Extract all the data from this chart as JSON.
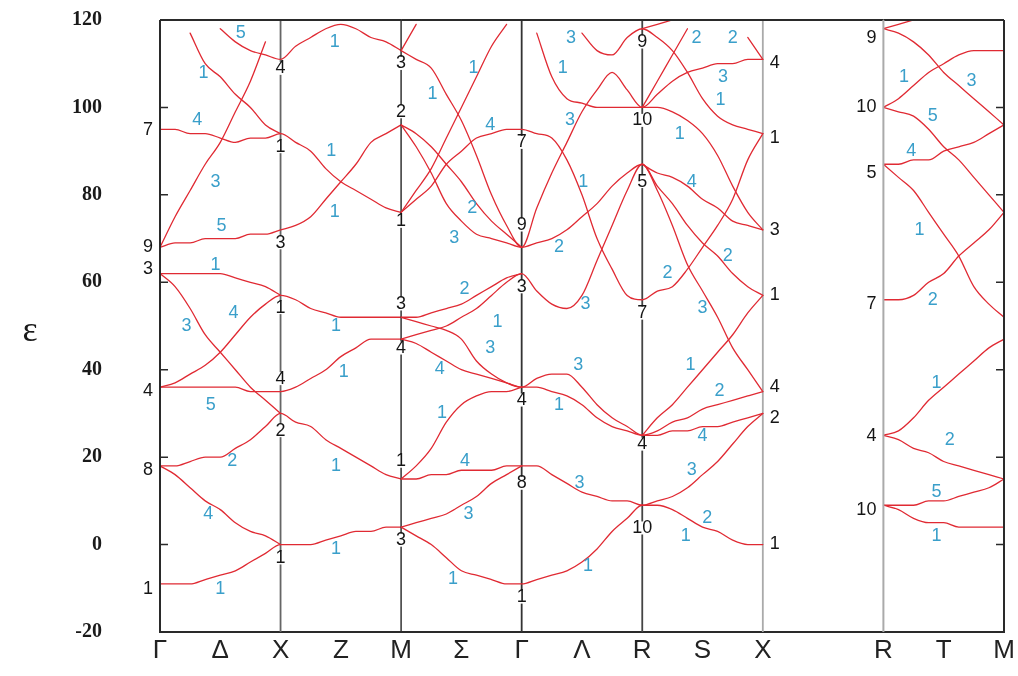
{
  "chart_data": [
    {
      "type": "line",
      "ylabel": "ε",
      "ylim": [
        -20,
        120
      ],
      "yticks": [
        -20,
        0,
        20,
        40,
        60,
        80,
        100,
        120
      ],
      "marker": "none",
      "categories": [
        "Γ",
        null,
        null,
        null,
        "Δ",
        null,
        null,
        null,
        "X",
        null,
        null,
        null,
        "Z",
        null,
        null,
        null,
        "M"
      ],
      "ref_lines": [
        {
          "axis": "x",
          "value": "X",
          "color": "#666666"
        }
      ],
      "series": [
        {
          "color": "#e02a33",
          "values": [
            -9,
            -9,
            -9,
            -8,
            -7,
            -6,
            -4,
            -2,
            0,
            0,
            0,
            1,
            2,
            3,
            3,
            4,
            4
          ]
        },
        {
          "color": "#e02a33",
          "values": [
            18,
            18,
            19,
            20,
            20,
            22,
            24,
            27,
            30,
            28,
            27,
            24,
            22,
            20,
            18,
            16,
            15
          ]
        },
        {
          "color": "#e02a33",
          "values": [
            36,
            36,
            36,
            36,
            36,
            36,
            35,
            35,
            35,
            36,
            38,
            40,
            43,
            45,
            47,
            47,
            47
          ]
        },
        {
          "color": "#e02a33",
          "values": [
            36,
            37,
            39,
            41,
            44,
            48,
            52,
            55,
            57,
            56,
            54,
            53,
            52,
            52,
            52,
            52,
            52
          ]
        },
        {
          "color": "#e02a33",
          "values": [
            68,
            69,
            69,
            70,
            70,
            70,
            71,
            71,
            72,
            73,
            75,
            79,
            83,
            87,
            92,
            94,
            96
          ]
        },
        {
          "color": "#e02a33",
          "values": [
            95,
            95,
            94,
            94,
            93,
            92,
            93,
            93,
            94,
            92,
            90,
            86,
            83,
            81,
            79,
            77,
            76
          ]
        },
        {
          "color": "#e02a33",
          "values": [
            null,
            null,
            null,
            null,
            118,
            115,
            113,
            112,
            111,
            114,
            116,
            118,
            119,
            118,
            116,
            115,
            113
          ]
        },
        {
          "color": "#e02a33",
          "values": [
            18,
            16,
            13,
            10,
            8,
            5,
            3,
            2,
            0,
            null,
            null,
            null,
            null,
            null,
            null,
            null,
            null
          ]
        },
        {
          "color": "#e02a33",
          "values": [
            62,
            59,
            54,
            48,
            44,
            40,
            36,
            33,
            30,
            null,
            null,
            null,
            null,
            null,
            null,
            null,
            null
          ]
        },
        {
          "color": "#e02a33",
          "values": [
            62,
            62,
            62,
            62,
            62,
            61,
            60,
            59,
            57,
            null,
            null,
            null,
            null,
            null,
            null,
            null,
            null
          ]
        },
        {
          "color": "#e02a33",
          "values": [
            68,
            75,
            81,
            87,
            92,
            99,
            106,
            115,
            null,
            null,
            null,
            null,
            null,
            null,
            null,
            null,
            null
          ]
        },
        {
          "color": "#e02a33",
          "values": [
            null,
            null,
            117,
            110,
            107,
            103,
            100,
            96,
            94,
            null,
            null,
            null,
            null,
            null,
            null,
            null,
            null
          ]
        }
      ],
      "annotations": [
        "7",
        "9",
        "3",
        "4",
        "8",
        "1",
        "4",
        "1",
        "3",
        "1",
        "4",
        "2",
        "1",
        "3",
        "2",
        "1",
        "3",
        "4",
        "1",
        "3",
        "5",
        "1",
        "4",
        "3",
        "5",
        "1",
        "4",
        "3",
        "5",
        "2",
        "4",
        "1",
        "1",
        "1",
        "1",
        "1",
        "1",
        "1",
        "1"
      ]
    },
    {
      "type": "line",
      "ylim": [
        -20,
        120
      ],
      "tick_labels": "x",
      "marker": "none",
      "categories": [
        null,
        null,
        null,
        null,
        "Σ",
        null,
        null,
        null,
        "Γ",
        null,
        null,
        null,
        "Λ",
        null,
        null,
        null,
        "R",
        null,
        null,
        null,
        "S",
        null,
        null,
        null,
        "X",
        null,
        null,
        null,
        null,
        null,
        null,
        null,
        null
      ],
      "ref_lines": [
        {
          "axis": "x",
          "value": "Γ",
          "color": "#333333"
        },
        {
          "axis": "x",
          "value": "R",
          "color": "#444444"
        },
        {
          "axis": "x",
          "value": "X",
          "color": "#aaaaaa"
        }
      ],
      "series": [
        {
          "color": "#e02a33",
          "values": [
            4,
            2,
            0,
            -3,
            -6,
            -7,
            -8,
            -9,
            -9,
            -8,
            -7,
            -6,
            -4,
            -1,
            3,
            6,
            9,
            9,
            8,
            6,
            4,
            3,
            1,
            0,
            0,
            null,
            null,
            null,
            null,
            null,
            null,
            null,
            null
          ]
        },
        {
          "color": "#e02a33",
          "values": [
            15,
            15,
            16,
            16,
            17,
            17,
            17,
            18,
            18,
            18,
            16,
            14,
            12,
            11,
            10,
            10,
            9,
            10,
            11,
            13,
            16,
            19,
            23,
            27,
            30,
            null,
            null,
            null,
            null,
            null,
            null,
            null,
            null
          ]
        },
        {
          "color": "#e02a33",
          "values": [
            47,
            46,
            44,
            42,
            40,
            39,
            38,
            37,
            36,
            38,
            39,
            39,
            36,
            32,
            29,
            27,
            25,
            25,
            26,
            26,
            27,
            27,
            28,
            29,
            30,
            null,
            null,
            null,
            null,
            null,
            null,
            null,
            null
          ]
        },
        {
          "color": "#e02a33",
          "values": [
            52,
            51,
            50,
            49,
            47,
            42,
            39,
            37,
            36,
            36,
            35,
            34,
            32,
            29,
            27,
            26,
            25,
            26,
            28,
            29,
            31,
            32,
            33,
            34,
            35,
            null,
            null,
            null,
            null,
            null,
            null,
            null,
            null
          ]
        },
        {
          "color": "#e02a33",
          "values": [
            96,
            91,
            85,
            78,
            74,
            71,
            70,
            69,
            68,
            69,
            70,
            72,
            75,
            78,
            82,
            85,
            87,
            81,
            73,
            64,
            58,
            52,
            45,
            40,
            35,
            null,
            null,
            null,
            null,
            null,
            null,
            null,
            null
          ]
        },
        {
          "color": "#e02a33",
          "values": [
            76,
            79,
            82,
            87,
            90,
            93,
            94,
            95,
            95,
            94,
            93,
            88,
            80,
            70,
            63,
            57,
            56,
            58,
            59,
            63,
            68,
            73,
            79,
            88,
            94,
            null,
            null,
            null,
            null,
            null,
            null,
            null,
            null
          ]
        },
        {
          "color": "#e02a33",
          "values": [
            113,
            111,
            109,
            103,
            97,
            89,
            80,
            73,
            68,
            77,
            85,
            92,
            99,
            104,
            108,
            104,
            100,
            100,
            99,
            97,
            94,
            89,
            82,
            76,
            72,
            null,
            null,
            null,
            null,
            null,
            null,
            null,
            null
          ]
        },
        {
          "color": "#e02a33",
          "values": [
            47,
            48,
            49,
            50,
            52,
            54,
            57,
            60,
            62,
            58,
            55,
            54,
            57,
            65,
            73,
            81,
            87,
            82,
            78,
            73,
            69,
            66,
            62,
            59,
            57,
            null,
            null,
            null,
            null,
            null,
            null,
            null,
            null
          ]
        },
        {
          "color": "#e02a33",
          "values": [
            null,
            null,
            null,
            null,
            null,
            null,
            null,
            null,
            null,
            117,
            107,
            102,
            101,
            100,
            100,
            100,
            100,
            103,
            106,
            108,
            109,
            110,
            110,
            111,
            111,
            null,
            null,
            null,
            null,
            null,
            null,
            null,
            null
          ]
        },
        {
          "color": "#e02a33",
          "values": [
            null,
            null,
            null,
            null,
            null,
            null,
            null,
            null,
            null,
            null,
            null,
            null,
            117,
            113,
            112,
            116,
            118,
            116,
            113,
            108,
            102,
            98,
            96,
            95,
            94,
            null,
            null,
            null,
            null,
            null,
            null,
            null,
            null
          ]
        },
        {
          "color": "#e02a33",
          "values": [
            4,
            5,
            6,
            7,
            9,
            11,
            14,
            16,
            18,
            null,
            null,
            null,
            null,
            null,
            null,
            null,
            null,
            null,
            null,
            null,
            null,
            null,
            null,
            null,
            null,
            null,
            null,
            null,
            null,
            null,
            null,
            null,
            null
          ]
        },
        {
          "color": "#e02a33",
          "values": [
            15,
            18,
            22,
            28,
            32,
            34,
            35,
            35,
            36,
            null,
            null,
            null,
            null,
            null,
            null,
            null,
            null,
            null,
            null,
            null,
            null,
            null,
            null,
            null,
            null,
            null,
            null,
            null,
            null,
            null,
            null,
            null,
            null
          ]
        },
        {
          "color": "#e02a33",
          "values": [
            52,
            52,
            53,
            54,
            55,
            57,
            59,
            61,
            62,
            null,
            null,
            null,
            null,
            null,
            null,
            null,
            null,
            null,
            null,
            null,
            null,
            null,
            null,
            null,
            null,
            null,
            null,
            null,
            null,
            null,
            null,
            null,
            null
          ]
        },
        {
          "color": "#e02a33",
          "values": [
            76,
            81,
            86,
            93,
            100,
            107,
            114,
            119,
            null,
            null,
            null,
            null,
            null,
            null,
            null,
            null,
            null,
            null,
            null,
            null,
            null,
            null,
            null,
            null,
            null,
            null,
            null,
            null,
            null,
            null,
            null,
            null,
            null
          ]
        },
        {
          "color": "#e02a33",
          "values": [
            96,
            94,
            91,
            87,
            83,
            78,
            74,
            71,
            68,
            null,
            null,
            null,
            null,
            null,
            null,
            null,
            null,
            null,
            null,
            null,
            null,
            null,
            null,
            null,
            null,
            null,
            null,
            null,
            null,
            null,
            null,
            null,
            null
          ]
        },
        {
          "color": "#e02a33",
          "values": [
            113,
            119,
            null,
            null,
            null,
            null,
            null,
            null,
            null,
            null,
            null,
            null,
            null,
            null,
            null,
            null,
            null,
            null,
            null,
            null,
            null,
            null,
            null,
            null,
            null,
            null,
            null,
            null,
            null,
            null,
            null,
            null,
            null
          ]
        },
        {
          "color": "#e02a33",
          "values": [
            null,
            null,
            null,
            null,
            null,
            null,
            null,
            null,
            null,
            null,
            null,
            null,
            null,
            null,
            null,
            null,
            25,
            29,
            32,
            36,
            40,
            44,
            48,
            53,
            57,
            null,
            null,
            null,
            null,
            null,
            null,
            null,
            null
          ]
        },
        {
          "color": "#e02a33",
          "values": [
            null,
            null,
            null,
            null,
            null,
            null,
            null,
            null,
            null,
            null,
            null,
            null,
            null,
            null,
            null,
            null,
            87,
            85,
            84,
            82,
            79,
            77,
            74,
            73,
            72,
            null,
            null,
            null,
            null,
            null,
            null,
            null,
            null
          ]
        },
        {
          "color": "#e02a33",
          "values": [
            null,
            null,
            null,
            null,
            null,
            null,
            null,
            null,
            null,
            null,
            null,
            null,
            null,
            null,
            null,
            null,
            100,
            106,
            112,
            118,
            null,
            null,
            null,
            null,
            null,
            null,
            null,
            null,
            null,
            null,
            null,
            null,
            null
          ]
        },
        {
          "color": "#e02a33",
          "values": [
            null,
            null,
            null,
            null,
            null,
            null,
            null,
            null,
            null,
            null,
            null,
            null,
            null,
            null,
            null,
            null,
            null,
            null,
            null,
            null,
            null,
            null,
            null,
            116,
            111,
            null,
            null,
            null,
            null,
            null,
            null,
            null,
            null
          ]
        },
        {
          "color": "#e02a33",
          "values": [
            null,
            null,
            null,
            null,
            null,
            null,
            null,
            null,
            null,
            null,
            null,
            null,
            null,
            null,
            null,
            null,
            118,
            119,
            120,
            null,
            null,
            null,
            null,
            null,
            null,
            null,
            null,
            null,
            null,
            null,
            null,
            null,
            null
          ]
        }
      ],
      "annotations": [
        "7",
        "9",
        "3",
        "4",
        "8",
        "1",
        "9",
        "10",
        "5",
        "7",
        "4",
        "10",
        "4",
        "1",
        "3",
        "1",
        "4",
        "2",
        "1",
        "1",
        "1",
        "4",
        "2",
        "3",
        "2",
        "1",
        "3",
        "4",
        "1",
        "4",
        "3",
        "1",
        "3",
        "1",
        "3",
        "1",
        "2",
        "3",
        "3",
        "1",
        "3",
        "1",
        "2",
        "2",
        "3",
        "1",
        "1",
        "4",
        "2",
        "2",
        "3",
        "1",
        "2",
        "4",
        "3",
        "2",
        "1"
      ]
    },
    {
      "type": "line",
      "ylim": [
        -20,
        120
      ],
      "yticks": [
        -20,
        0,
        20,
        40,
        60,
        80,
        100,
        120
      ],
      "tick_labels": "x",
      "marker": "none",
      "categories": [
        "R",
        null,
        null,
        null,
        "T",
        null,
        null,
        null,
        "M"
      ],
      "series": [
        {
          "color": "#e02a33",
          "values": [
            9,
            8,
            6,
            5,
            5,
            4,
            4,
            4,
            4
          ]
        },
        {
          "color": "#e02a33",
          "values": [
            9,
            9,
            9,
            10,
            10,
            11,
            12,
            13,
            15
          ]
        },
        {
          "color": "#e02a33",
          "values": [
            25,
            24,
            22,
            21,
            19,
            18,
            17,
            16,
            15
          ]
        },
        {
          "color": "#e02a33",
          "values": [
            25,
            26,
            29,
            33,
            36,
            39,
            42,
            45,
            47
          ]
        },
        {
          "color": "#e02a33",
          "values": [
            56,
            56,
            57,
            60,
            62,
            66,
            69,
            72,
            76
          ]
        },
        {
          "color": "#e02a33",
          "values": [
            87,
            84,
            81,
            76,
            71,
            66,
            59,
            55,
            52
          ]
        },
        {
          "color": "#e02a33",
          "values": [
            87,
            87,
            88,
            88,
            90,
            91,
            92,
            94,
            96
          ]
        },
        {
          "color": "#e02a33",
          "values": [
            100,
            99,
            98,
            95,
            91,
            88,
            84,
            80,
            76
          ]
        },
        {
          "color": "#e02a33",
          "values": [
            100,
            102,
            105,
            108,
            110,
            112,
            113,
            113,
            113
          ]
        },
        {
          "color": "#e02a33",
          "values": [
            118,
            117,
            115,
            112,
            108,
            105,
            102,
            99,
            96
          ]
        },
        {
          "color": "#e02a33",
          "values": [
            118,
            119,
            120,
            null,
            null,
            null,
            null,
            null,
            null
          ]
        }
      ],
      "annotations": [
        "9",
        "10",
        "5",
        "7",
        "4",
        "10",
        "1",
        "3",
        "5",
        "4",
        "1",
        "2",
        "1",
        "2",
        "5",
        "1"
      ]
    }
  ]
}
